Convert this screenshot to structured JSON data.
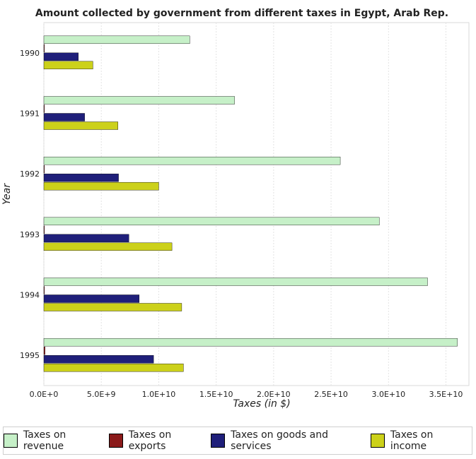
{
  "chart_data": {
    "type": "bar",
    "orientation": "horizontal",
    "title": "Amount collected by government from different taxes in Egypt, Arab Rep.",
    "xlabel": "Taxes (in $)",
    "ylabel": "Year",
    "categories": [
      "1990",
      "1991",
      "1992",
      "1993",
      "1994",
      "1995"
    ],
    "xlim": [
      0,
      37000000000.0
    ],
    "x_ticks": [
      0,
      5000000000.0,
      10000000000.0,
      15000000000.0,
      20000000000.0,
      25000000000.0,
      30000000000.0,
      35000000000.0
    ],
    "x_tick_labels": [
      "0.0E+0",
      "5.0E+9",
      "1.0E+10",
      "1.5E+10",
      "2.0E+10",
      "2.5E+10",
      "3.0E+10",
      "3.5E+10"
    ],
    "grid": true,
    "legend_position": "bottom",
    "series": [
      {
        "name": "Taxes on revenue",
        "color": "#c6f0c8",
        "values": [
          12700000000.0,
          16600000000.0,
          25800000000.0,
          29200000000.0,
          33400000000.0,
          36000000000.0
        ]
      },
      {
        "name": "Taxes on exports",
        "color": "#8b1a1a",
        "values": [
          10000000.0,
          10000000.0,
          20000000.0,
          20000000.0,
          20000000.0,
          100000000.0
        ]
      },
      {
        "name": "Taxes on goods and services",
        "color": "#1f1f7a",
        "values": [
          3000000000.0,
          3550000000.0,
          6500000000.0,
          7400000000.0,
          8300000000.0,
          9550000000.0
        ]
      },
      {
        "name": "Taxes on income",
        "color": "#ccd11a",
        "values": [
          4270000000.0,
          6450000000.0,
          10000000000.0,
          11150000000.0,
          12000000000.0,
          12150000000.0
        ]
      }
    ]
  }
}
